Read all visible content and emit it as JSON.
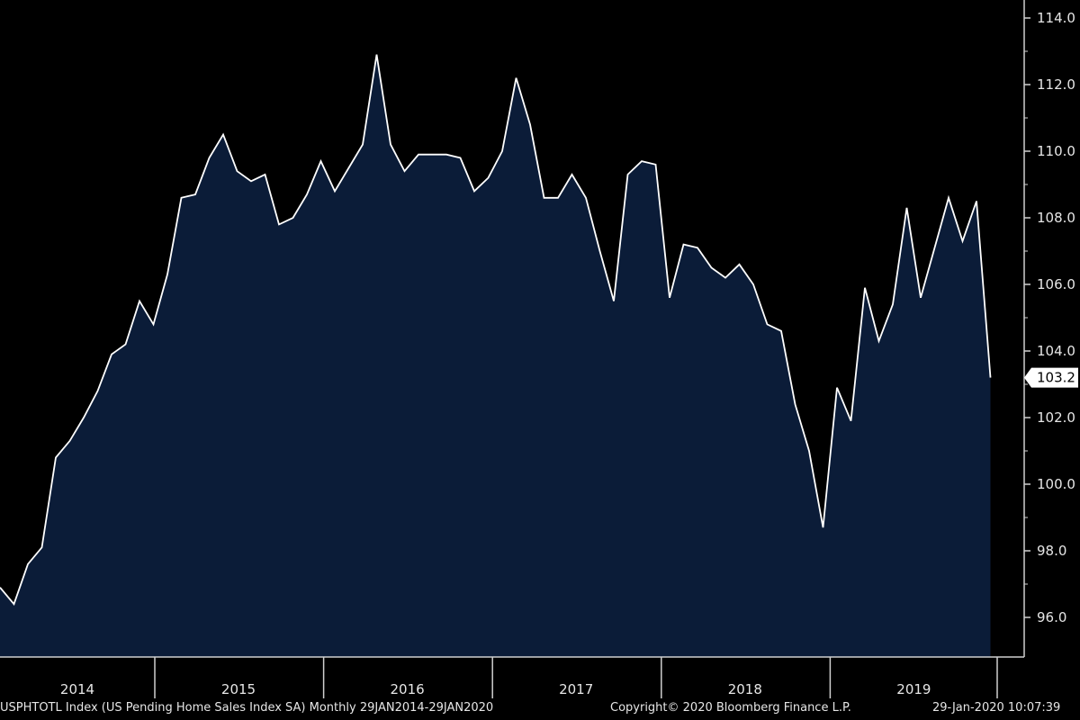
{
  "chart_data": {
    "type": "area",
    "series": [
      {
        "name": "USPHTOTL Index",
        "x": [
          "2014-01",
          "2014-02",
          "2014-03",
          "2014-04",
          "2014-05",
          "2014-06",
          "2014-07",
          "2014-08",
          "2014-09",
          "2014-10",
          "2014-11",
          "2014-12",
          "2015-01",
          "2015-02",
          "2015-03",
          "2015-04",
          "2015-05",
          "2015-06",
          "2015-07",
          "2015-08",
          "2015-09",
          "2015-10",
          "2015-11",
          "2015-12",
          "2016-01",
          "2016-02",
          "2016-03",
          "2016-04",
          "2016-05",
          "2016-06",
          "2016-07",
          "2016-08",
          "2016-09",
          "2016-10",
          "2016-11",
          "2016-12",
          "2017-01",
          "2017-02",
          "2017-03",
          "2017-04",
          "2017-05",
          "2017-06",
          "2017-07",
          "2017-08",
          "2017-09",
          "2017-10",
          "2017-11",
          "2017-12",
          "2018-01",
          "2018-02",
          "2018-03",
          "2018-04",
          "2018-05",
          "2018-06",
          "2018-07",
          "2018-08",
          "2018-09",
          "2018-10",
          "2018-11",
          "2018-12",
          "2019-01",
          "2019-02",
          "2019-03",
          "2019-04",
          "2019-05",
          "2019-06",
          "2019-07",
          "2019-08",
          "2019-09",
          "2019-10",
          "2019-11",
          "2019-12"
        ],
        "values": [
          96.9,
          96.4,
          97.6,
          98.1,
          100.8,
          101.3,
          102.0,
          102.8,
          103.9,
          104.2,
          105.5,
          104.8,
          106.3,
          108.6,
          108.7,
          109.8,
          110.5,
          109.4,
          109.1,
          109.3,
          107.8,
          108.0,
          108.7,
          109.7,
          108.8,
          109.5,
          110.2,
          112.9,
          110.2,
          109.4,
          109.9,
          109.9,
          109.9,
          109.8,
          108.8,
          109.2,
          110.0,
          112.2,
          110.8,
          108.6,
          108.6,
          109.3,
          108.6,
          107.0,
          105.5,
          109.3,
          109.7,
          109.6,
          105.6,
          107.2,
          107.1,
          106.5,
          106.2,
          106.6,
          106.0,
          104.8,
          104.6,
          102.4,
          101.0,
          98.7,
          102.9,
          101.9,
          105.9,
          104.3,
          105.4,
          108.3,
          105.6,
          107.1,
          108.6,
          107.3,
          108.5,
          103.2
        ]
      }
    ],
    "yticks": [
      "96.0",
      "98.0",
      "100.0",
      "102.0",
      "104.0",
      "106.0",
      "108.0",
      "110.0",
      "112.0",
      "114.0"
    ],
    "ylim": [
      94.8,
      115.0
    ],
    "years": [
      "2014",
      "2015",
      "2016",
      "2017",
      "2018",
      "2019"
    ],
    "last_value_label": "103.2",
    "fill_color": "#0b1c38",
    "line_color": "#ffffff"
  },
  "footer": {
    "left": "USPHTOTL Index (US Pending Home Sales Index SA)  Monthly 29JAN2014-29JAN2020",
    "center": "Copyright© 2020 Bloomberg Finance L.P.",
    "right": "29-Jan-2020 10:07:39"
  }
}
